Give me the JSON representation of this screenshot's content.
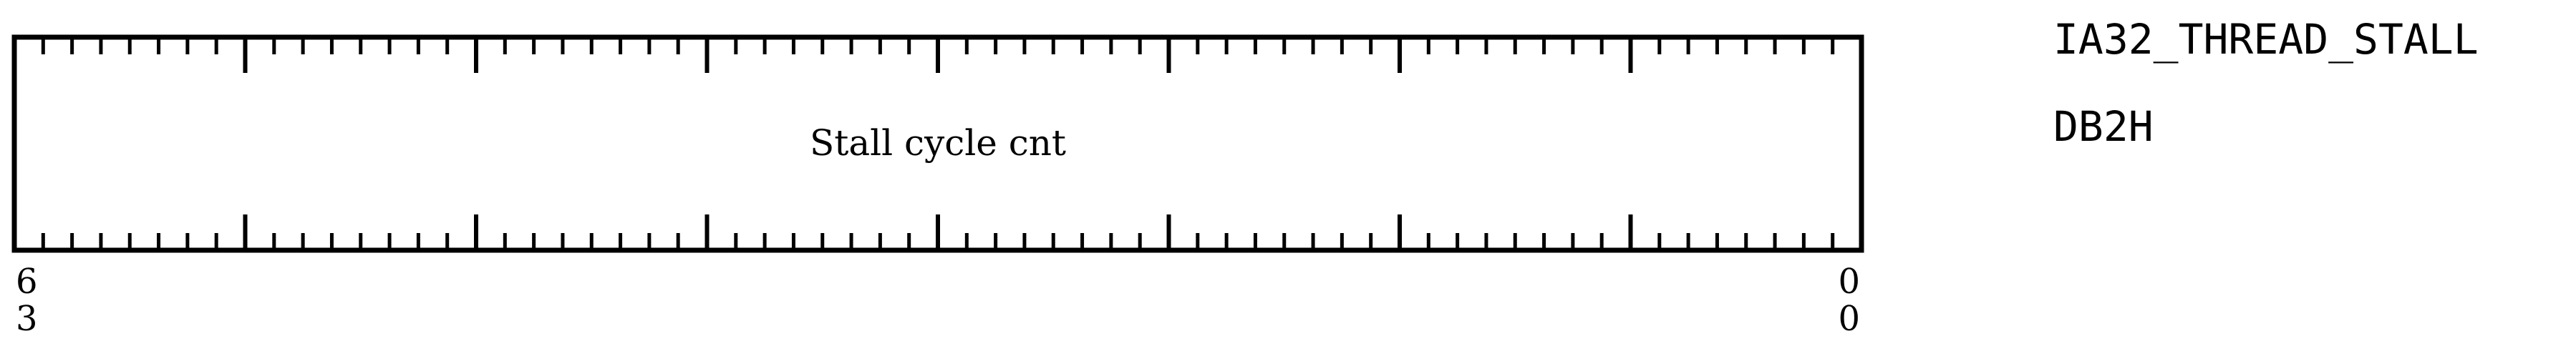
{
  "register": {
    "name": "IA32_THREAD_STALL",
    "address": "DB2H"
  },
  "fields": [
    {
      "label": "Stall cycle cnt",
      "msb": 63,
      "lsb": 0
    }
  ],
  "bit_labels": {
    "left_top": "6",
    "left_bottom": "3",
    "right_top": "0",
    "right_bottom": "0"
  },
  "bit_range": {
    "msb": 63,
    "lsb": 0
  }
}
